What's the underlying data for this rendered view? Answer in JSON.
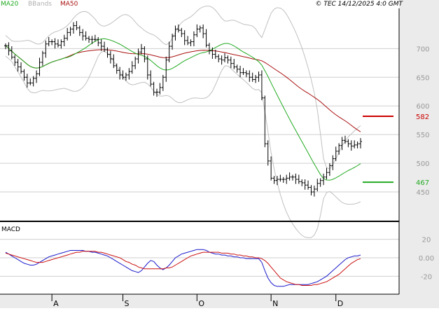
{
  "legend": [
    {
      "label": "MA20",
      "color": "#22aa22"
    },
    {
      "label": "BBands",
      "color": "#b0b0b0"
    },
    {
      "label": "MA50",
      "color": "#aa1111"
    }
  ],
  "copyright": "© TEC 14/12/2025 4:0 GMT",
  "colors": {
    "price": "#000000",
    "ma20": "#22aa22",
    "ma50": "#aa1111",
    "bbands": "#c0c0c0",
    "macd": "#1a1acc",
    "signal": "#cc1111",
    "plot_bg": "#ffffff",
    "axis_bg": "#ebebeb",
    "grid": "#cfcfcf"
  },
  "chart_data": [
    {
      "type": "ohlc",
      "ylim": [
        400,
        770
      ],
      "yticks": [
        450,
        500,
        550,
        600,
        650,
        700
      ],
      "xticks": [
        {
          "label": "A",
          "index": 15
        },
        {
          "label": "S",
          "index": 38
        },
        {
          "label": "O",
          "index": 62
        },
        {
          "label": "N",
          "index": 86
        },
        {
          "label": "D",
          "index": 107
        }
      ],
      "n_bars": 116,
      "close": [
        705,
        696,
        685,
        676,
        668,
        660,
        650,
        640,
        640,
        648,
        656,
        676,
        692,
        708,
        712,
        712,
        708,
        706,
        712,
        718,
        728,
        734,
        740,
        736,
        728,
        722,
        718,
        716,
        716,
        716,
        710,
        704,
        698,
        690,
        682,
        670,
        662,
        654,
        650,
        654,
        660,
        670,
        682,
        694,
        700,
        682,
        654,
        638,
        624,
        624,
        632,
        650,
        680,
        704,
        722,
        734,
        732,
        726,
        714,
        710,
        712,
        724,
        734,
        736,
        726,
        706,
        696,
        690,
        686,
        682,
        680,
        684,
        680,
        674,
        668,
        664,
        658,
        658,
        656,
        650,
        646,
        650,
        654,
        614,
        534,
        504,
        474,
        470,
        472,
        472,
        472,
        474,
        476,
        476,
        472,
        468,
        466,
        462,
        458,
        450,
        455,
        465,
        470,
        476,
        484,
        496,
        508,
        521,
        531,
        540,
        538,
        534,
        530,
        532,
        534,
        538
      ],
      "annotations": [
        {
          "label": "582",
          "value": 582,
          "color": "#cc0000"
        },
        {
          "label": "467",
          "value": 467,
          "color": "#22aa22"
        }
      ]
    },
    {
      "type": "line",
      "name": "MACD",
      "ylim": [
        -38,
        38
      ],
      "yticks": [
        {
          "value": 20,
          "label": "20"
        },
        {
          "value": 0,
          "label": "0.00"
        },
        {
          "value": -20,
          "label": "-20"
        }
      ],
      "series": [
        {
          "name": "MACD",
          "color": "#1a1acc",
          "values": [
            6,
            4,
            2,
            0,
            -2,
            -4,
            -6,
            -7,
            -8,
            -8,
            -7,
            -5,
            -3,
            -1,
            1,
            2,
            3,
            4,
            5,
            6,
            7,
            8,
            8,
            8,
            8,
            8,
            7,
            7,
            6,
            6,
            5,
            4,
            3,
            2,
            0,
            -2,
            -4,
            -6,
            -8,
            -10,
            -12,
            -14,
            -15,
            -16,
            -14,
            -10,
            -6,
            -3,
            -4,
            -8,
            -11,
            -13,
            -11,
            -8,
            -4,
            0,
            2,
            4,
            5,
            6,
            7,
            8,
            9,
            9,
            9,
            8,
            6,
            5,
            4,
            4,
            3,
            3,
            2,
            2,
            1,
            1,
            0,
            0,
            -1,
            -1,
            -1,
            -1,
            -1,
            -5,
            -14,
            -22,
            -27,
            -30,
            -31,
            -31,
            -31,
            -30,
            -29,
            -29,
            -29,
            -29,
            -29,
            -29,
            -29,
            -28,
            -27,
            -26,
            -24,
            -22,
            -20,
            -17,
            -14,
            -11,
            -8,
            -5,
            -2,
            0,
            1,
            2,
            2,
            3
          ]
        },
        {
          "name": "Signal",
          "color": "#cc1111",
          "values": [
            5,
            4,
            3,
            2,
            1,
            0,
            -1,
            -2,
            -3,
            -4,
            -5,
            -5,
            -5,
            -4,
            -3,
            -2,
            -1,
            0,
            1,
            2,
            3,
            4,
            5,
            6,
            6,
            7,
            7,
            7,
            7,
            7,
            6,
            6,
            5,
            4,
            3,
            2,
            1,
            0,
            -2,
            -4,
            -5,
            -7,
            -8,
            -10,
            -11,
            -12,
            -12,
            -12,
            -12,
            -12,
            -12,
            -12,
            -11,
            -11,
            -10,
            -8,
            -6,
            -4,
            -2,
            0,
            2,
            3,
            4,
            5,
            6,
            6,
            6,
            6,
            6,
            6,
            5,
            5,
            5,
            4,
            4,
            3,
            3,
            2,
            2,
            1,
            1,
            0,
            0,
            -1,
            -3,
            -6,
            -10,
            -14,
            -18,
            -22,
            -24,
            -26,
            -27,
            -28,
            -29,
            -29,
            -30,
            -30,
            -30,
            -30,
            -29,
            -29,
            -28,
            -27,
            -26,
            -24,
            -22,
            -20,
            -18,
            -15,
            -12,
            -9,
            -6,
            -4,
            -2,
            -1
          ]
        }
      ]
    }
  ]
}
